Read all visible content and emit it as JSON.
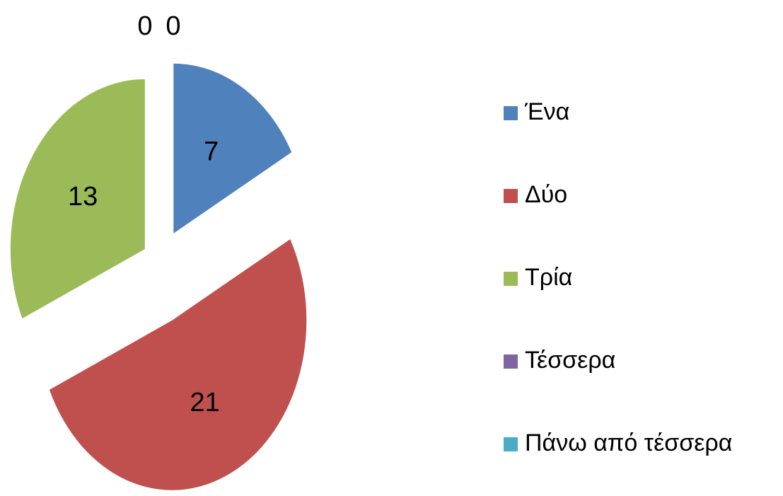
{
  "chart_data": {
    "type": "pie",
    "categories": [
      "Ένα",
      "Δύο",
      "Τρία",
      "Τέσσερα",
      "Πάνω από τέσσερα"
    ],
    "values": [
      7,
      21,
      13,
      0,
      0
    ],
    "colors": [
      "#4f81bd",
      "#c0504d",
      "#9bbb59",
      "#8064a2",
      "#4bacc6"
    ],
    "exploded": true,
    "legend": "right"
  }
}
